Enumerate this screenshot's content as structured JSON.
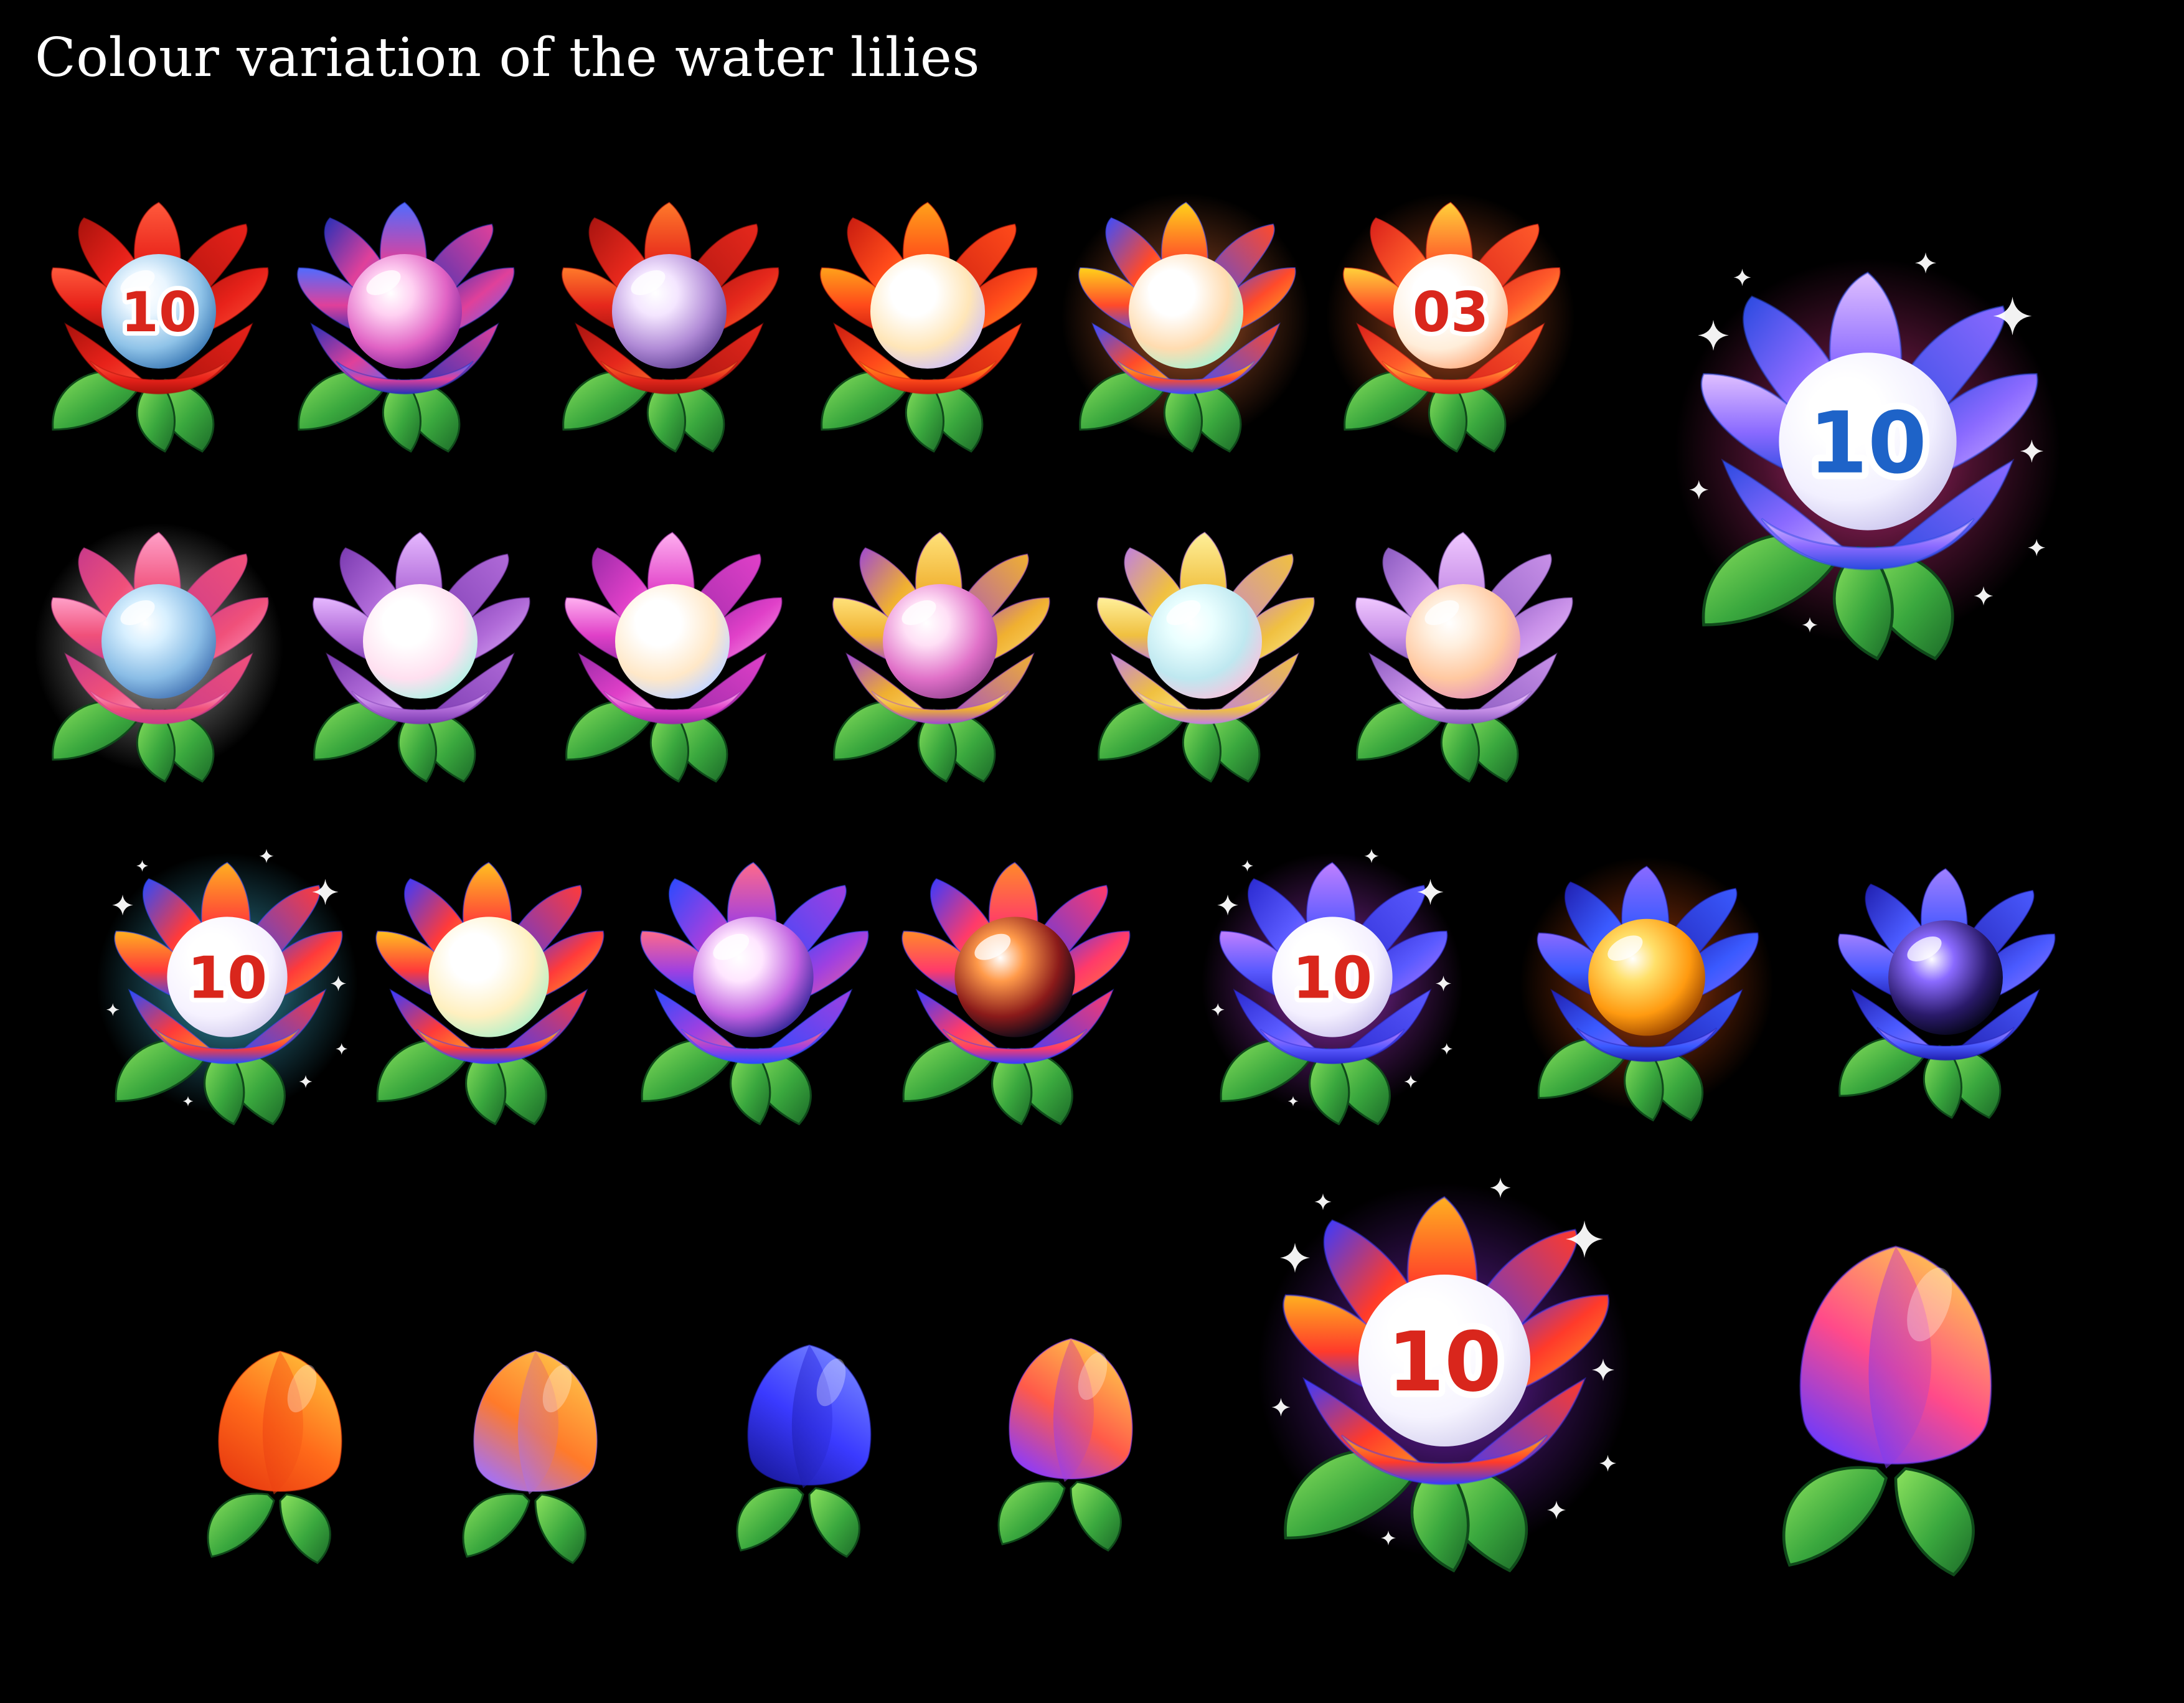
{
  "title": "Colour variation of the water lilies",
  "colors": {
    "background": "#000000",
    "title_text": "#ffffff",
    "leaf_light": "#7ed957",
    "leaf_dark": "#1f7a2e",
    "badge_red": "#d9261c",
    "badge_blue": "#1e63c8"
  },
  "lilies": [
    {
      "name": "lily-red-blue-orb-badge",
      "petals": [
        "#ff5a3c",
        "#e8221a",
        "#a8120c"
      ],
      "orb": [
        "#eaf6ff",
        "#8fc3e8",
        "#3f7db8"
      ],
      "badge": "10",
      "badge_color": "#d9261c",
      "glow": null,
      "sparkles": false
    },
    {
      "name": "lily-blue-pink-orb",
      "petals": [
        "#4f6cff",
        "#e0409a",
        "#2530b8"
      ],
      "orb": [
        "#ffd1f2",
        "#e062c4",
        "#8a2a9e"
      ],
      "badge": null,
      "badge_color": null,
      "glow": null,
      "sparkles": false
    },
    {
      "name": "lily-red-lavender-orb",
      "petals": [
        "#ff7a2a",
        "#e6281c",
        "#a81410"
      ],
      "orb": [
        "#f4e6ff",
        "#b08ad6",
        "#6a4a9e"
      ],
      "badge": null,
      "badge_color": null,
      "glow": null,
      "sparkles": false
    },
    {
      "name": "lily-red-orange-pearl-orb",
      "petals": [
        "#ffa21a",
        "#ff4a1a",
        "#c81c10"
      ],
      "orb": [
        "#ffffff",
        "#ffe6b8",
        "#d6c6f0"
      ],
      "badge": null,
      "badge_color": null,
      "glow": null,
      "sparkles": false
    },
    {
      "name": "lily-rainbow-pearl-orb",
      "petals": [
        "#ffd21a",
        "#ff4a2a",
        "#3b4cff"
      ],
      "orb": [
        "#ffffff",
        "#ffdcb0",
        "#b0f0d0"
      ],
      "badge": null,
      "badge_color": null,
      "glow": "#ff7a3a",
      "sparkles": false
    },
    {
      "name": "lily-red-yellow-badge-03",
      "petals": [
        "#ffd23a",
        "#ff5a2a",
        "#d8201a"
      ],
      "orb": [
        "#ffffff",
        "#ffeeda",
        "#ffb48a"
      ],
      "badge": "03",
      "badge_color": "#d9261c",
      "glow": "#ff6a2a",
      "sparkles": false
    },
    {
      "name": "lily-pink-blue-orb",
      "petals": [
        "#ffa0c8",
        "#f0507a",
        "#c83a8a"
      ],
      "orb": [
        "#d8f0ff",
        "#8abde6",
        "#4a7ab8"
      ],
      "badge": null,
      "badge_color": null,
      "glow": "#ffffff",
      "sparkles": false
    },
    {
      "name": "lily-lavender-pearl-orb",
      "petals": [
        "#e6b8ff",
        "#b06ad8",
        "#7a3ab0"
      ],
      "orb": [
        "#ffffff",
        "#ffe0f0",
        "#b8f0e6"
      ],
      "badge": null,
      "badge_color": null,
      "glow": null,
      "sparkles": false
    },
    {
      "name": "lily-magenta-pearl-orb",
      "petals": [
        "#ffb0f0",
        "#e040c8",
        "#9a2aa8"
      ],
      "orb": [
        "#ffffff",
        "#ffe8c8",
        "#c8d8ff"
      ],
      "badge": null,
      "badge_color": null,
      "glow": null,
      "sparkles": false
    },
    {
      "name": "lily-yellow-pink-orb",
      "petals": [
        "#ffe27a",
        "#f0b030",
        "#a04ad0"
      ],
      "orb": [
        "#ffe0f6",
        "#e070c8",
        "#a04a9a"
      ],
      "badge": null,
      "badge_color": null,
      "glow": null,
      "sparkles": false
    },
    {
      "name": "lily-yellow-pastel-orb",
      "petals": [
        "#fff09a",
        "#f0c040",
        "#c080e0"
      ],
      "orb": [
        "#eaffff",
        "#bfe8f0",
        "#f0c8e0"
      ],
      "badge": null,
      "badge_color": null,
      "glow": null,
      "sparkles": false
    },
    {
      "name": "lily-lilac-peach-orb",
      "petals": [
        "#f0c8ff",
        "#c890e8",
        "#8a5ac0"
      ],
      "orb": [
        "#fff0e0",
        "#ffc8a0",
        "#e89ab8"
      ],
      "badge": null,
      "badge_color": null,
      "glow": null,
      "sparkles": false
    },
    {
      "name": "lily-rainbow-badge-sparkle",
      "petals": [
        "#ffb020",
        "#ff3a3a",
        "#2a4aff"
      ],
      "orb": [
        "#ffffff",
        "#f6f2ff",
        "#d6d0f0"
      ],
      "badge": "10",
      "badge_color": "#d9261c",
      "glow": "#4ad8ff",
      "sparkles": true
    },
    {
      "name": "lily-rainbow-pearl-large-orb",
      "petals": [
        "#ffc020",
        "#ff3a3a",
        "#3a3aff"
      ],
      "orb": [
        "#ffffff",
        "#fff0c0",
        "#b8f0c8"
      ],
      "badge": null,
      "badge_color": null,
      "glow": null,
      "sparkles": false
    },
    {
      "name": "lily-rainbow-nebula-orb",
      "petals": [
        "#ff6a8a",
        "#a040e0",
        "#2a4aff"
      ],
      "orb": [
        "#ffe6ff",
        "#c060e0",
        "#3a2a9e"
      ],
      "badge": null,
      "badge_color": null,
      "glow": null,
      "sparkles": false
    },
    {
      "name": "lily-rainbow-lava-orb",
      "petals": [
        "#ff8a2a",
        "#ff3a6a",
        "#3a3aff"
      ],
      "orb": [
        "#ff9a4a",
        "#8a1a1a",
        "#0a0a18"
      ],
      "badge": null,
      "badge_color": null,
      "glow": null,
      "sparkles": false
    },
    {
      "name": "lily-violet-badge-sparkle",
      "petals": [
        "#c080ff",
        "#5a5aff",
        "#2a2ad0"
      ],
      "orb": [
        "#ffffff",
        "#f4f0ff",
        "#d0c8f0"
      ],
      "badge": "10",
      "badge_color": "#d9261c",
      "glow": "#d040ff",
      "sparkles": true
    },
    {
      "name": "lily-blue-gold-orb",
      "petals": [
        "#8a6aff",
        "#3a5aff",
        "#2020b0"
      ],
      "orb": [
        "#ffe06a",
        "#ff9a10",
        "#a04a00"
      ],
      "badge": null,
      "badge_color": null,
      "glow": "#ff5a10",
      "sparkles": false
    },
    {
      "name": "lily-blue-galaxy-orb",
      "petals": [
        "#a080ff",
        "#4a5aff",
        "#2020b0"
      ],
      "orb": [
        "#8a6aff",
        "#2a1a6a",
        "#06061a"
      ],
      "badge": null,
      "badge_color": null,
      "glow": null,
      "sparkles": false
    },
    {
      "name": "lily-violet-blue-badge-large",
      "petals": [
        "#e0c0ff",
        "#8a6aff",
        "#2a4ae0"
      ],
      "orb": [
        "#ffffff",
        "#f2f0ff",
        "#cfcaf0"
      ],
      "badge": "10",
      "badge_color": "#1e63c8",
      "glow": "#ff3aa0",
      "sparkles": true
    },
    {
      "name": "lily-rainbow-badge-large",
      "petals": [
        "#ffb020",
        "#ff3a2a",
        "#3a3aff"
      ],
      "orb": [
        "#ffffff",
        "#f6f4ff",
        "#d8d4f0"
      ],
      "badge": "10",
      "badge_color": "#d9261c",
      "glow": "#a030ff",
      "sparkles": true
    }
  ],
  "buds": [
    {
      "name": "bud-orange",
      "colors": [
        "#ffc23a",
        "#ff6a1a",
        "#e83a10"
      ]
    },
    {
      "name": "bud-orange-lilac",
      "colors": [
        "#ffc84a",
        "#ff7a2a",
        "#a070ff"
      ]
    },
    {
      "name": "bud-blue",
      "colors": [
        "#7a8aff",
        "#3a3aff",
        "#1a1aa0"
      ]
    },
    {
      "name": "bud-orange-violet-rose",
      "colors": [
        "#ffd04a",
        "#ff5a4a",
        "#8a3aff"
      ]
    },
    {
      "name": "bud-rose-large",
      "colors": [
        "#ffd04a",
        "#ff4a8a",
        "#6a3aff"
      ]
    }
  ]
}
